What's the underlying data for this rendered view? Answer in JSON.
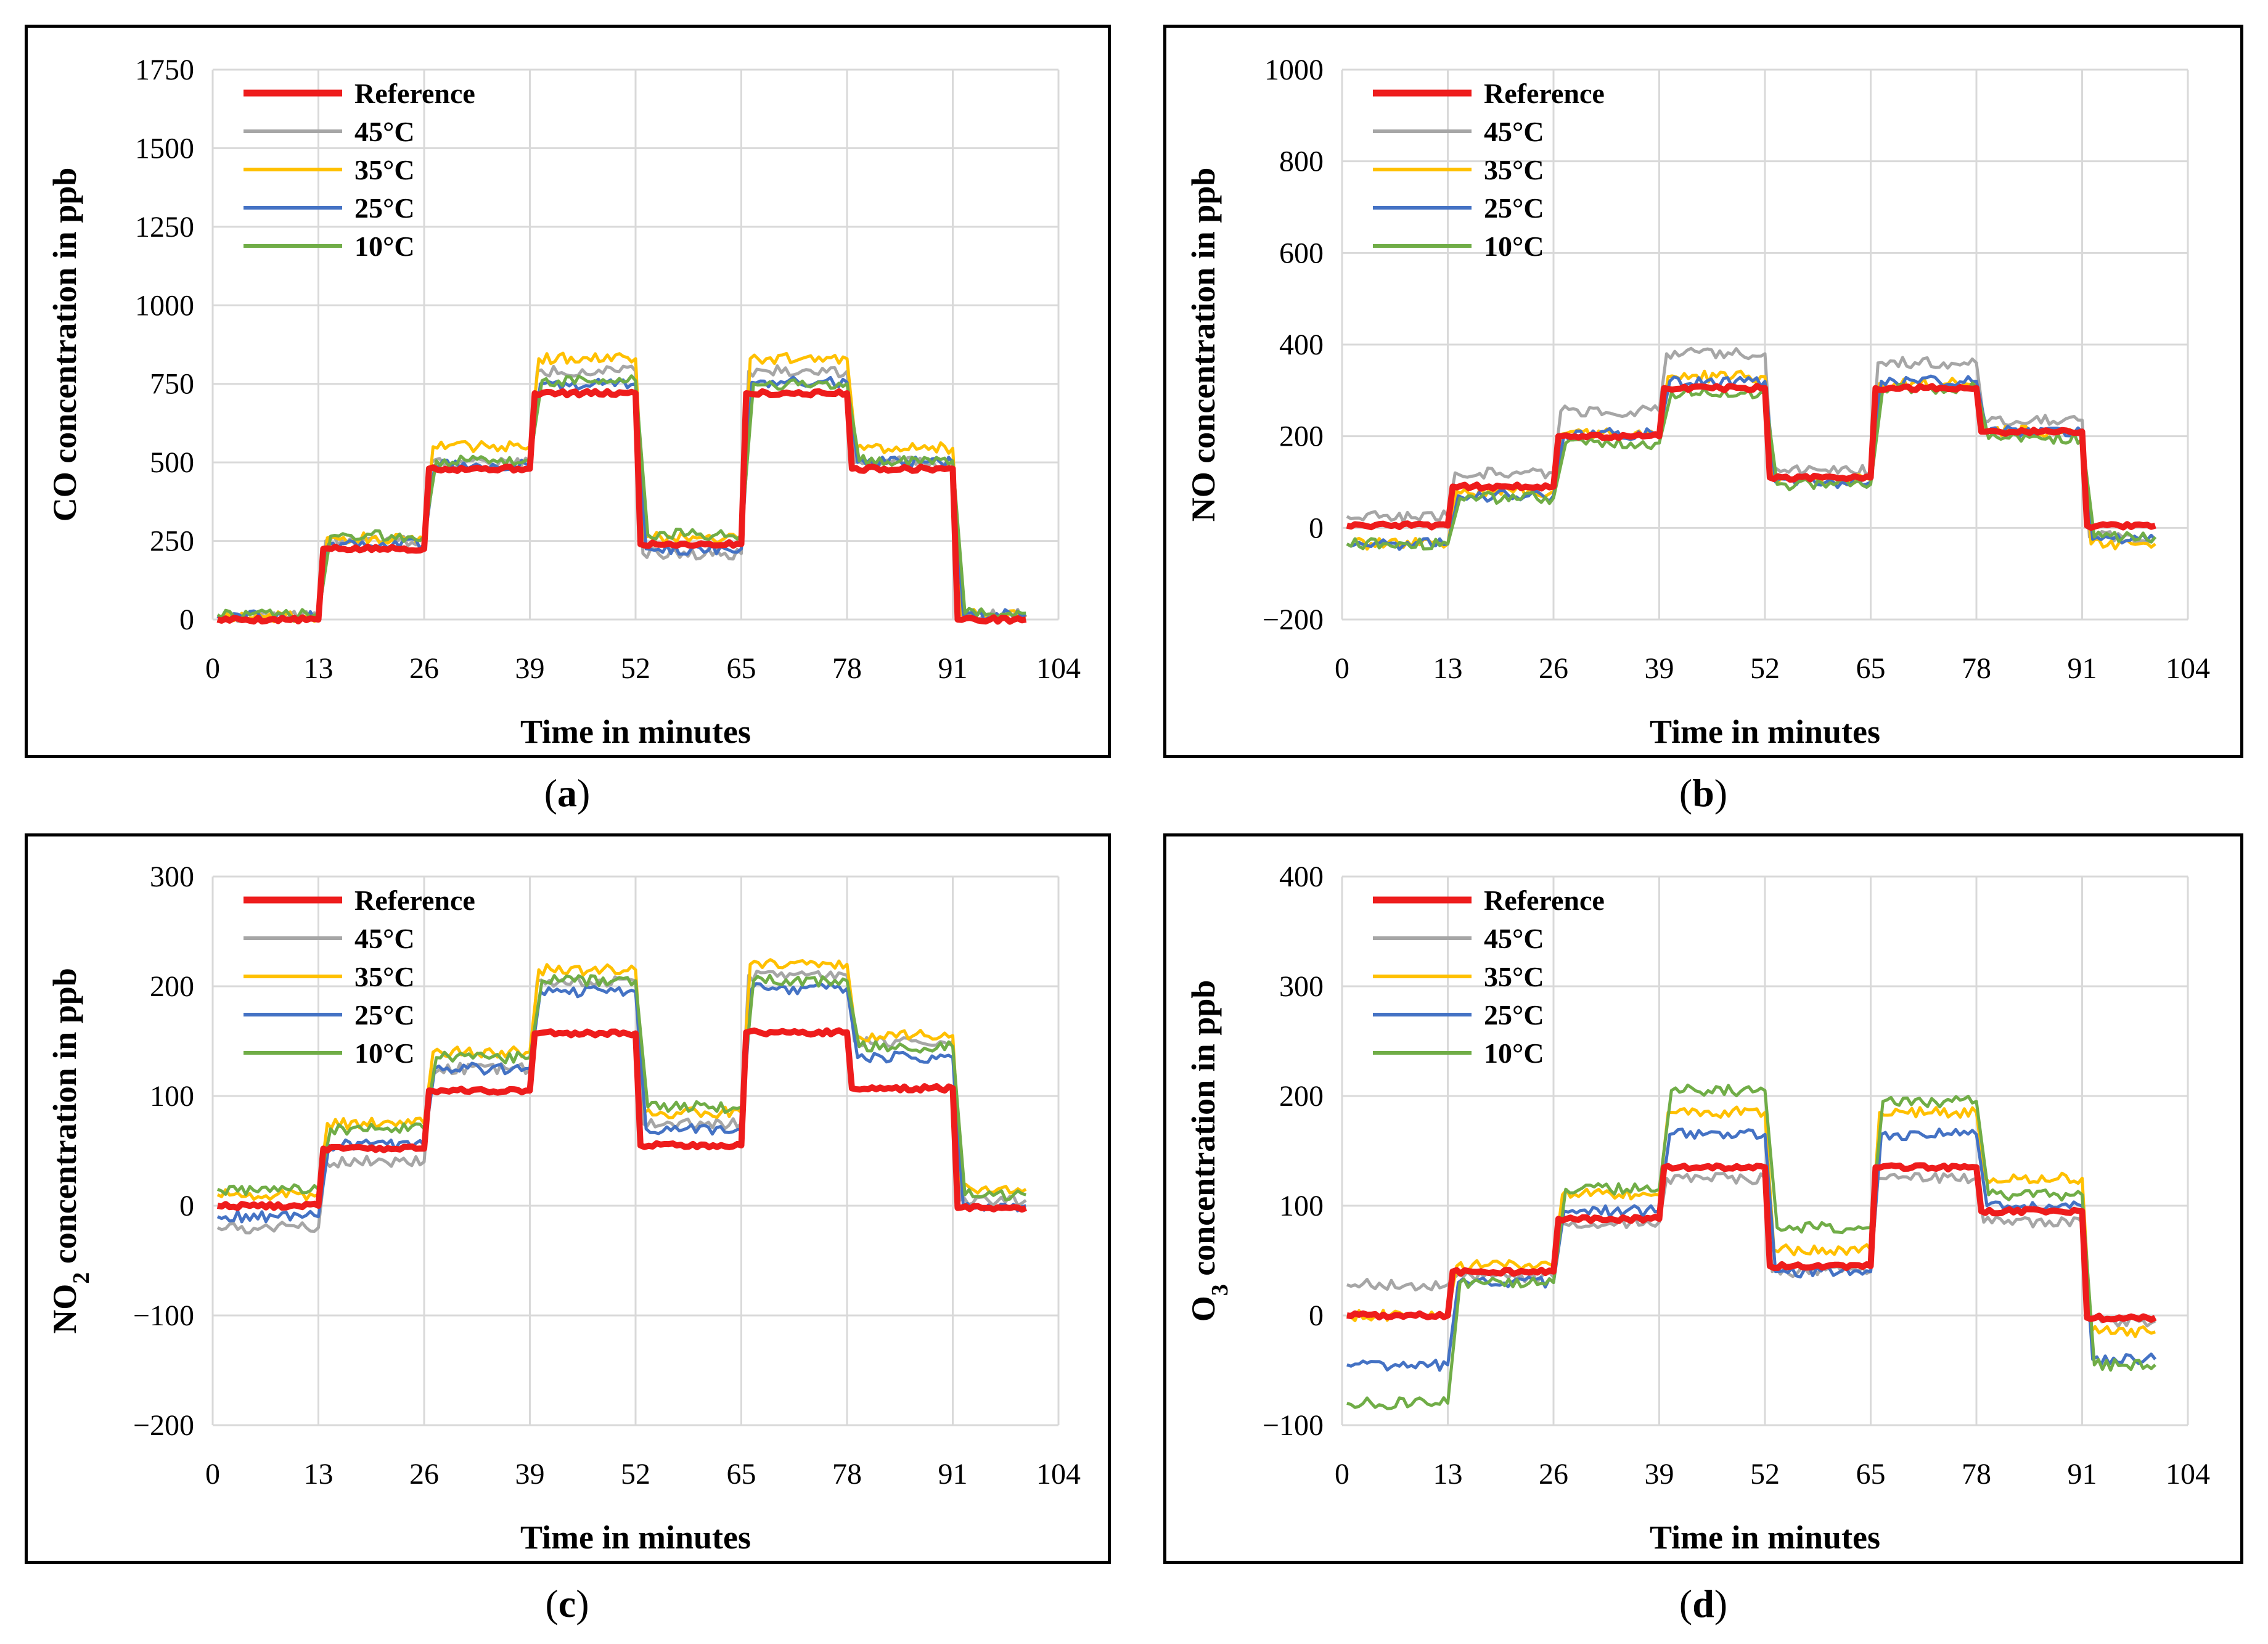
{
  "chart_data": [
    {
      "type": "line",
      "panel_label": "a",
      "xlabel": "Time in minutes",
      "ylabel": "CO concentration in ppb",
      "xlim": [
        0,
        104
      ],
      "ylim": [
        0,
        1750
      ],
      "xticks": [
        0,
        13,
        26,
        39,
        52,
        65,
        78,
        91,
        104
      ],
      "yticks": [
        0,
        250,
        500,
        750,
        1000,
        1250,
        1500,
        1750
      ],
      "legend_position": "top-left",
      "series": [
        {
          "name": "Reference",
          "color": "#ee1c1c",
          "width": 10,
          "levels": [
            0,
            225,
            480,
            720,
            240,
            720,
            480,
            0
          ]
        },
        {
          "name": "45°C",
          "color": "#a6a6a6",
          "width": 5,
          "levels": [
            10,
            250,
            500,
            790,
            210,
            790,
            500,
            15
          ]
        },
        {
          "name": "35°C",
          "color": "#ffc000",
          "width": 5,
          "levels": [
            10,
            260,
            550,
            830,
            260,
            830,
            545,
            15
          ]
        },
        {
          "name": "25°C",
          "color": "#4472c4",
          "width": 5,
          "levels": [
            10,
            240,
            490,
            750,
            225,
            755,
            500,
            15
          ]
        },
        {
          "name": "10°C",
          "color": "#70ad47",
          "width": 5,
          "levels": [
            15,
            265,
            505,
            760,
            270,
            750,
            505,
            20
          ]
        }
      ]
    },
    {
      "type": "line",
      "panel_label": "b",
      "xlabel": "Time in minutes",
      "ylabel": "NO concentration in ppb",
      "xlim": [
        0,
        104
      ],
      "ylim": [
        -200,
        1000
      ],
      "xticks": [
        0,
        13,
        26,
        39,
        52,
        65,
        78,
        91,
        104
      ],
      "yticks": [
        -200,
        0,
        200,
        400,
        600,
        800,
        1000
      ],
      "legend_position": "top-left",
      "series": [
        {
          "name": "Reference",
          "color": "#ee1c1c",
          "width": 10,
          "levels": [
            5,
            90,
            200,
            305,
            110,
            305,
            210,
            5
          ]
        },
        {
          "name": "45°C",
          "color": "#a6a6a6",
          "width": 5,
          "levels": [
            25,
            120,
            255,
            380,
            125,
            360,
            235,
            -20
          ]
        },
        {
          "name": "35°C",
          "color": "#ffc000",
          "width": 5,
          "levels": [
            -35,
            80,
            205,
            330,
            105,
            315,
            210,
            -35
          ]
        },
        {
          "name": "25°C",
          "color": "#4472c4",
          "width": 5,
          "levels": [
            -35,
            70,
            205,
            320,
            100,
            320,
            210,
            -25
          ]
        },
        {
          "name": "10°C",
          "color": "#70ad47",
          "width": 5,
          "levels": [
            -35,
            65,
            185,
            295,
            95,
            305,
            195,
            -20
          ]
        }
      ]
    },
    {
      "type": "line",
      "panel_label": "c",
      "xlabel": "Time in minutes",
      "ylabel_main": "NO",
      "ylabel_sub": "2",
      "ylabel_rest": " concentration in ppb",
      "xlim": [
        0,
        104
      ],
      "ylim": [
        -200,
        300
      ],
      "xticks": [
        0,
        13,
        26,
        39,
        52,
        65,
        78,
        91,
        104
      ],
      "yticks": [
        -200,
        -100,
        0,
        100,
        200,
        300
      ],
      "legend_position": "top-left",
      "series": [
        {
          "name": "Reference",
          "color": "#ee1c1c",
          "width": 10,
          "levels": [
            0,
            52,
            105,
            157,
            55,
            158,
            107,
            -2
          ]
        },
        {
          "name": "45°C",
          "color": "#a6a6a6",
          "width": 5,
          "levels": [
            -20,
            40,
            125,
            205,
            75,
            210,
            150,
            5
          ]
        },
        {
          "name": "35°C",
          "color": "#ffc000",
          "width": 5,
          "levels": [
            10,
            75,
            140,
            215,
            85,
            220,
            155,
            15
          ]
        },
        {
          "name": "25°C",
          "color": "#4472c4",
          "width": 5,
          "levels": [
            -10,
            55,
            125,
            195,
            70,
            198,
            135,
            0
          ]
        },
        {
          "name": "10°C",
          "color": "#70ad47",
          "width": 5,
          "levels": [
            15,
            70,
            135,
            205,
            90,
            205,
            145,
            10
          ]
        }
      ]
    },
    {
      "type": "line",
      "panel_label": "d",
      "xlabel": "Time in minutes",
      "ylabel_main": "O",
      "ylabel_sub": "3",
      "ylabel_rest": " concentration in ppb",
      "xlim": [
        0,
        104
      ],
      "ylim": [
        -100,
        400
      ],
      "xticks": [
        0,
        13,
        26,
        39,
        52,
        65,
        78,
        91,
        104
      ],
      "yticks": [
        -100,
        0,
        100,
        200,
        300,
        400
      ],
      "legend_position": "top-left",
      "series": [
        {
          "name": "Reference",
          "color": "#ee1c1c",
          "width": 10,
          "levels": [
            0,
            40,
            88,
            135,
            45,
            135,
            95,
            -2
          ]
        },
        {
          "name": "45°C",
          "color": "#a6a6a6",
          "width": 5,
          "levels": [
            28,
            35,
            85,
            125,
            40,
            125,
            85,
            -5
          ]
        },
        {
          "name": "35°C",
          "color": "#ffc000",
          "width": 5,
          "levels": [
            0,
            45,
            110,
            185,
            60,
            185,
            125,
            -15
          ]
        },
        {
          "name": "25°C",
          "color": "#4472c4",
          "width": 5,
          "levels": [
            -45,
            30,
            95,
            165,
            40,
            165,
            100,
            -40
          ]
        },
        {
          "name": "10°C",
          "color": "#70ad47",
          "width": 5,
          "levels": [
            -80,
            30,
            115,
            205,
            80,
            195,
            110,
            -45
          ]
        }
      ]
    }
  ],
  "captions": {
    "a": "a",
    "b": "b",
    "c": "c",
    "d": "d"
  }
}
